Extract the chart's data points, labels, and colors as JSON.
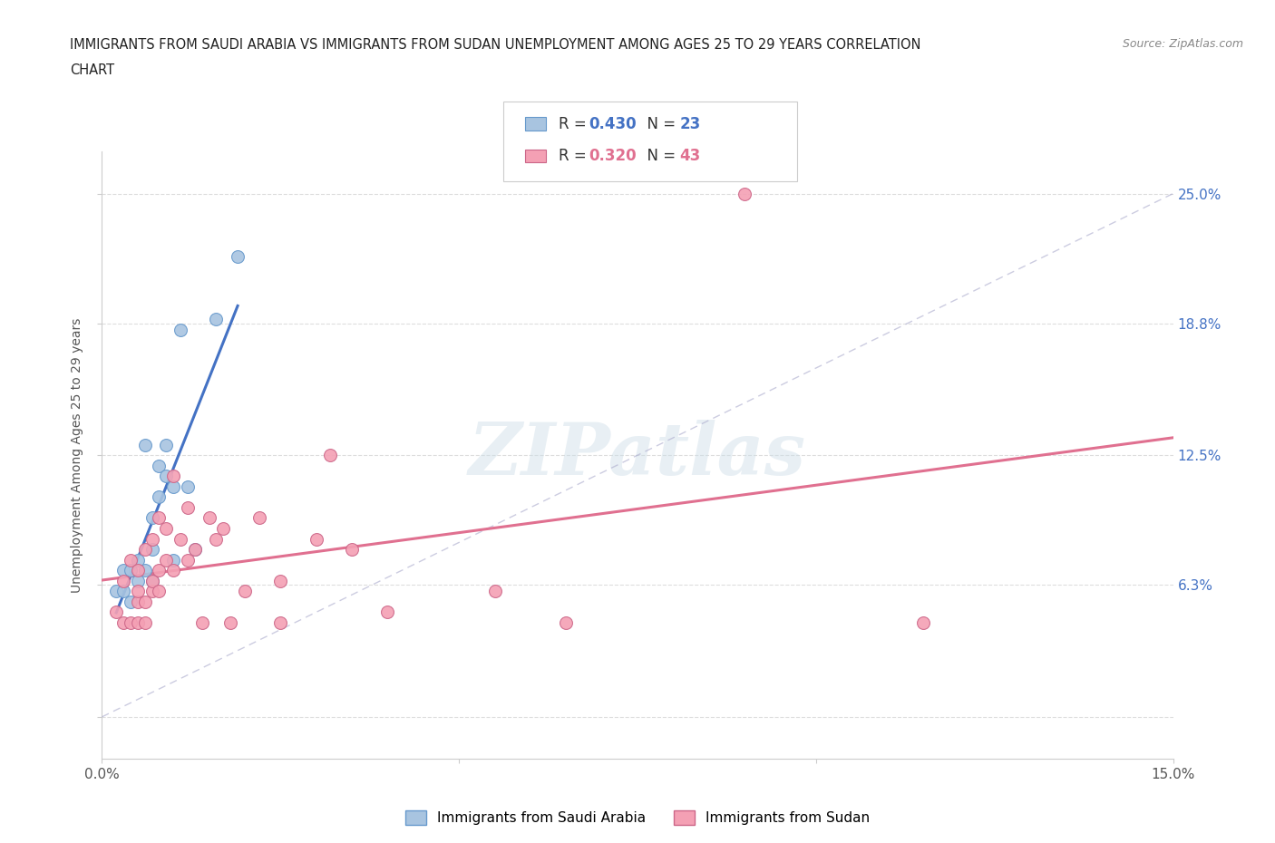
{
  "title_line1": "IMMIGRANTS FROM SAUDI ARABIA VS IMMIGRANTS FROM SUDAN UNEMPLOYMENT AMONG AGES 25 TO 29 YEARS CORRELATION",
  "title_line2": "CHART",
  "source": "Source: ZipAtlas.com",
  "ylabel": "Unemployment Among Ages 25 to 29 years",
  "xlim": [
    0.0,
    0.15
  ],
  "ylim": [
    -0.02,
    0.27
  ],
  "ytick_vals": [
    0.0,
    0.063,
    0.125,
    0.188,
    0.25
  ],
  "ytick_labels_right": [
    "6.3%",
    "12.5%",
    "18.8%",
    "25.0%"
  ],
  "ytick_vals_right": [
    0.063,
    0.125,
    0.188,
    0.25
  ],
  "xtick_vals": [
    0.0,
    0.05,
    0.1,
    0.15
  ],
  "xtick_labels": [
    "0.0%",
    "",
    "",
    "15.0%"
  ],
  "saudi_color": "#a8c4e0",
  "sudan_color": "#f4a0b4",
  "saudi_line_color": "#4472c4",
  "sudan_line_color": "#e07090",
  "watermark": "ZIPatlas",
  "saudi_scatter_x": [
    0.002,
    0.003,
    0.003,
    0.004,
    0.004,
    0.005,
    0.005,
    0.006,
    0.006,
    0.007,
    0.007,
    0.007,
    0.008,
    0.008,
    0.009,
    0.009,
    0.01,
    0.01,
    0.011,
    0.012,
    0.013,
    0.016,
    0.019
  ],
  "saudi_scatter_y": [
    0.06,
    0.06,
    0.07,
    0.055,
    0.07,
    0.065,
    0.075,
    0.07,
    0.13,
    0.065,
    0.08,
    0.095,
    0.105,
    0.12,
    0.115,
    0.13,
    0.075,
    0.11,
    0.185,
    0.11,
    0.08,
    0.19,
    0.22
  ],
  "sudan_scatter_x": [
    0.002,
    0.003,
    0.003,
    0.004,
    0.004,
    0.005,
    0.005,
    0.005,
    0.005,
    0.006,
    0.006,
    0.006,
    0.007,
    0.007,
    0.007,
    0.008,
    0.008,
    0.008,
    0.009,
    0.009,
    0.01,
    0.01,
    0.011,
    0.012,
    0.012,
    0.013,
    0.014,
    0.015,
    0.016,
    0.017,
    0.018,
    0.02,
    0.022,
    0.025,
    0.025,
    0.03,
    0.032,
    0.035,
    0.04,
    0.055,
    0.065,
    0.09,
    0.115
  ],
  "sudan_scatter_y": [
    0.05,
    0.045,
    0.065,
    0.045,
    0.075,
    0.045,
    0.055,
    0.06,
    0.07,
    0.045,
    0.055,
    0.08,
    0.06,
    0.065,
    0.085,
    0.06,
    0.07,
    0.095,
    0.075,
    0.09,
    0.07,
    0.115,
    0.085,
    0.075,
    0.1,
    0.08,
    0.045,
    0.095,
    0.085,
    0.09,
    0.045,
    0.06,
    0.095,
    0.045,
    0.065,
    0.085,
    0.125,
    0.08,
    0.05,
    0.06,
    0.045,
    0.25,
    0.045
  ],
  "background_color": "#ffffff",
  "grid_color": "#dddddd",
  "title_color": "#222222",
  "right_label_color": "#4472c4"
}
